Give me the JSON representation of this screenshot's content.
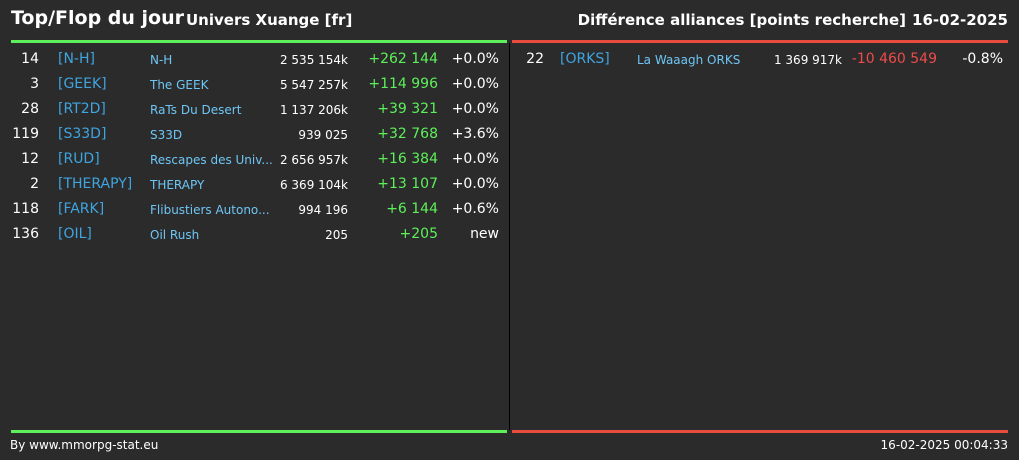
{
  "header": {
    "title": "Top/Flop du jour",
    "universe": "Univers Xuange [fr]",
    "subtitle": "Différence alliances [points recherche]",
    "date": "16-02-2025"
  },
  "colors": {
    "background": "#2b2b2b",
    "top_accent": "#5ef05a",
    "flop_accent": "#e74c3c",
    "tag": "#3ea5e0",
    "name": "#6ec6f5"
  },
  "top": [
    {
      "rank": "14",
      "tag": "[N-H]",
      "name": "N-H",
      "points": "2 535 154k",
      "diff": "+262 144",
      "pct": "+0.0%"
    },
    {
      "rank": "3",
      "tag": "[GEEK]",
      "name": "The GEEK",
      "points": "5 547 257k",
      "diff": "+114 996",
      "pct": "+0.0%"
    },
    {
      "rank": "28",
      "tag": "[RT2D]",
      "name": "RaTs Du Desert",
      "points": "1 137 206k",
      "diff": "+39 321",
      "pct": "+0.0%"
    },
    {
      "rank": "119",
      "tag": "[S33D]",
      "name": "S33D",
      "points": "939 025",
      "diff": "+32 768",
      "pct": "+3.6%"
    },
    {
      "rank": "12",
      "tag": "[RUD]",
      "name": "Rescapes des Univ...",
      "points": "2 656 957k",
      "diff": "+16 384",
      "pct": "+0.0%"
    },
    {
      "rank": "2",
      "tag": "[THERAPY]",
      "name": "THERAPY",
      "points": "6 369 104k",
      "diff": "+13 107",
      "pct": "+0.0%"
    },
    {
      "rank": "118",
      "tag": "[FARK]",
      "name": "Flibustiers Autono...",
      "points": "994 196",
      "diff": "+6 144",
      "pct": "+0.6%"
    },
    {
      "rank": "136",
      "tag": "[OIL]",
      "name": "Oil Rush",
      "points": "205",
      "diff": "+205",
      "pct": "new"
    }
  ],
  "flop": [
    {
      "rank": "22",
      "tag": "[ORKS]",
      "name": "La Waaagh ORKS",
      "points": "1 369 917k",
      "diff": "-10 460 549",
      "pct": "-0.8%"
    }
  ],
  "footer": {
    "credit": "By www.mmorpg-stat.eu",
    "timestamp": "16-02-2025 00:04:33"
  }
}
